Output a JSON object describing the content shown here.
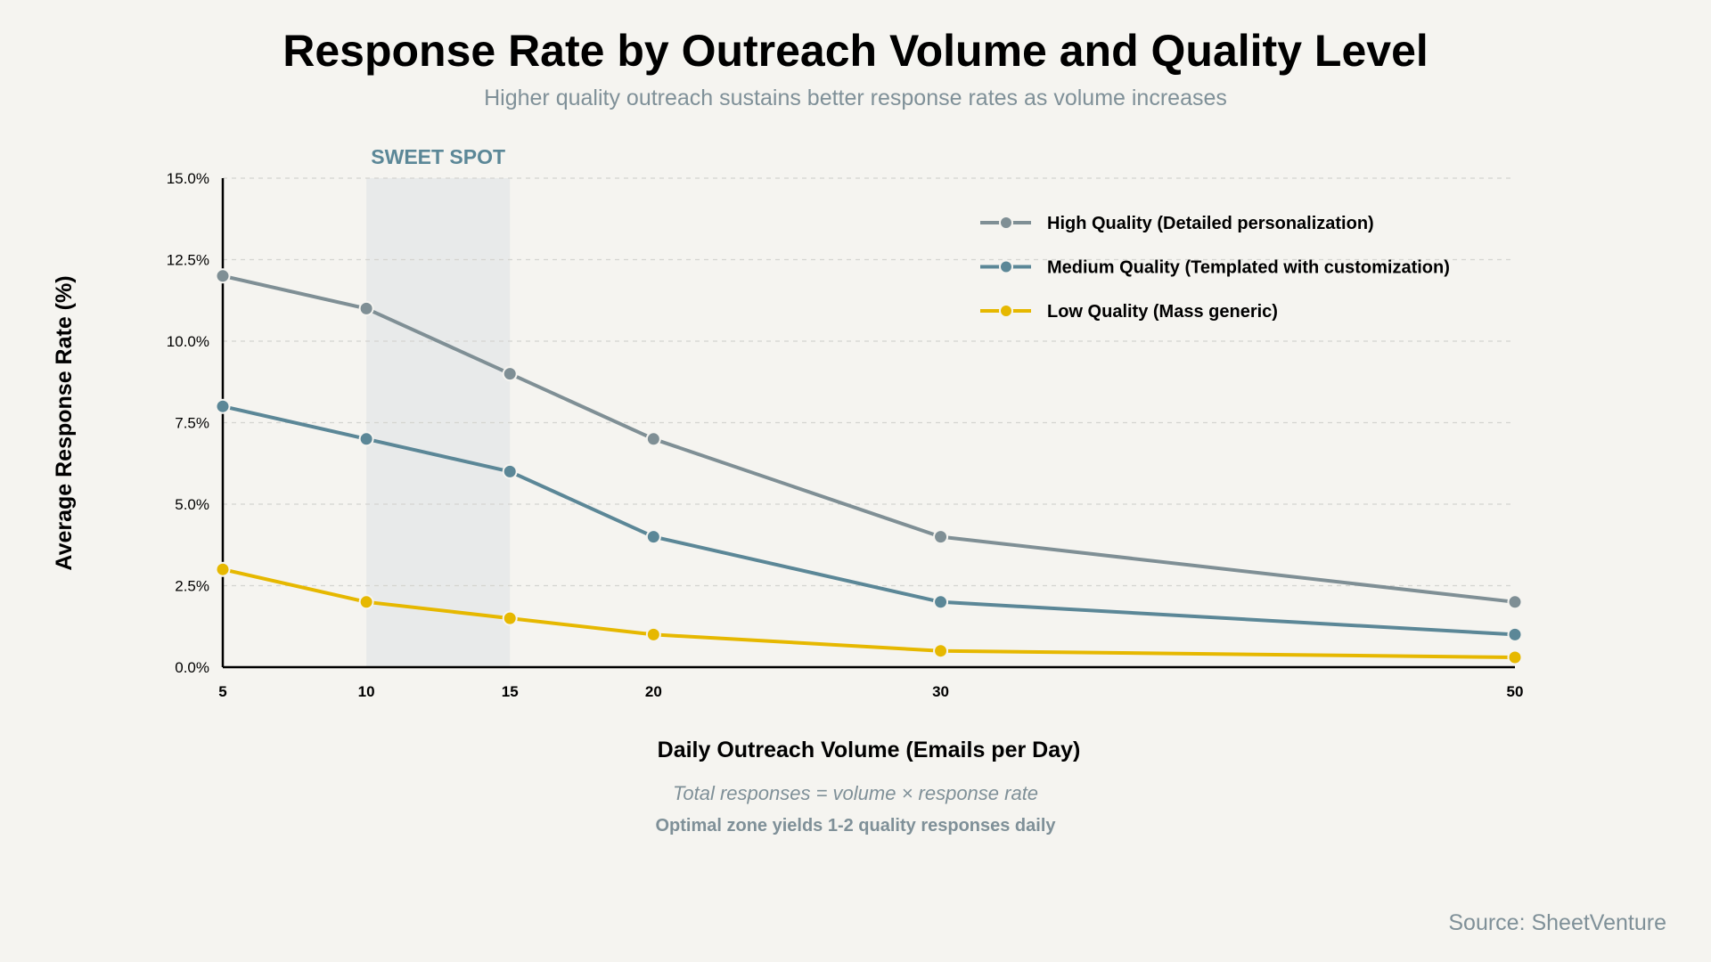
{
  "title": "Response Rate by Outreach Volume and Quality Level",
  "subtitle": "Higher quality outreach sustains better response rates as volume increases",
  "notes": [
    "Total responses = volume × response rate",
    "Optimal zone yields 1-2 quality responses daily"
  ],
  "source": "Source: SheetVenture",
  "chart_data": {
    "type": "line",
    "xlabel": "Daily Outreach Volume (Emails per Day)",
    "ylabel": "Average Response Rate (%)",
    "x": [
      5,
      10,
      15,
      20,
      30,
      50
    ],
    "x_tick_labels": [
      "5",
      "10",
      "15",
      "20",
      "30",
      "50"
    ],
    "xlim": [
      5,
      50
    ],
    "ylim": [
      0,
      15
    ],
    "y_ticks": [
      0,
      2.5,
      5,
      7.5,
      10,
      12.5,
      15
    ],
    "y_tick_labels": [
      "0.0%",
      "2.5%",
      "5.0%",
      "7.5%",
      "10.0%",
      "12.5%",
      "15.0%"
    ],
    "grid": "horizontal dashed",
    "legend_position": "top-right",
    "highlight_band": {
      "label": "SWEET SPOT",
      "x_range": [
        10,
        15
      ],
      "color": "#e8eaea",
      "label_color": "#5b8797"
    },
    "series": [
      {
        "name": "High Quality (Detailed personalization)",
        "color": "#7f8f95",
        "values": [
          12,
          11,
          9,
          7,
          4,
          2
        ]
      },
      {
        "name": "Medium Quality (Templated with customization)",
        "color": "#5b8797",
        "values": [
          8,
          7,
          6,
          4,
          2,
          1
        ]
      },
      {
        "name": "Low Quality (Mass generic)",
        "color": "#e6b800",
        "values": [
          3,
          2,
          1.5,
          1,
          0.5,
          0.3
        ]
      }
    ]
  }
}
